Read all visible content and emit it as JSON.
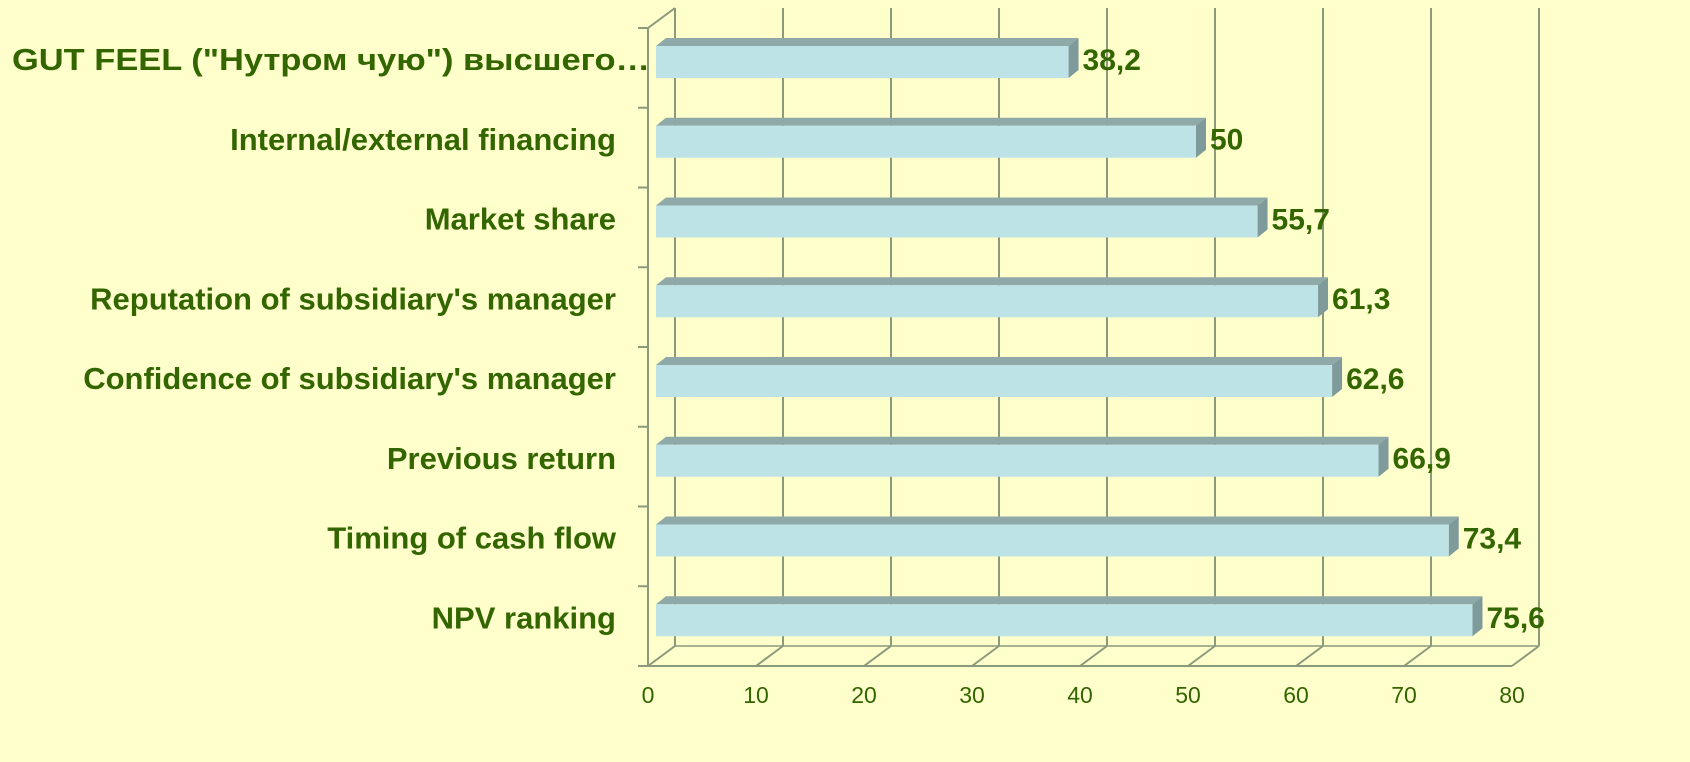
{
  "chart_data": {
    "type": "bar",
    "orientation": "horizontal",
    "categories": [
      "GUT FEEL (\"Нутром чую\") высшего…",
      "Internal/external financing",
      "Market share",
      "Reputation of subsidiary's manager",
      "Confidence of subsidiary's manager",
      "Previous return",
      "Timing of cash flow",
      "NPV ranking"
    ],
    "values": [
      38.2,
      50,
      55.7,
      61.3,
      62.6,
      66.9,
      73.4,
      75.6
    ],
    "value_labels": [
      "38,2",
      "50",
      "55,7",
      "61,3",
      "62,6",
      "66,9",
      "73,4",
      "75,6"
    ],
    "color": "#bde3e6",
    "xlim": [
      0,
      80
    ],
    "xticks": [
      0,
      10,
      20,
      30,
      40,
      50,
      60,
      70,
      80
    ],
    "grid": true
  }
}
